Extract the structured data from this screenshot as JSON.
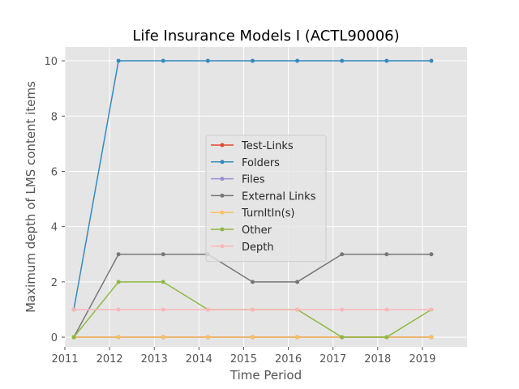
{
  "chart_data": {
    "type": "line",
    "title": "Life Insurance Models I (ACTL90006)",
    "xlabel": "Time Period",
    "ylabel": "Maximum depth of LMS content items",
    "xlim": [
      2011.0,
      2020.0
    ],
    "ylim": [
      -0.35,
      10.5
    ],
    "xticks": [
      2011,
      2012,
      2013,
      2014,
      2015,
      2016,
      2017,
      2018,
      2019
    ],
    "yticks": [
      0,
      2,
      4,
      6,
      8,
      10
    ],
    "grid": true,
    "legend_position": "center",
    "x": [
      2011.2,
      2012.2,
      2013.2,
      2014.2,
      2015.2,
      2016.2,
      2017.2,
      2018.2,
      2019.2
    ],
    "series": [
      {
        "name": "Test-Links",
        "color": "#e24a33",
        "values": [
          0,
          0,
          0,
          0,
          0,
          0,
          0,
          0,
          0
        ]
      },
      {
        "name": "Folders",
        "color": "#348abd",
        "values": [
          1,
          10,
          10,
          10,
          10,
          10,
          10,
          10,
          10
        ]
      },
      {
        "name": "Files",
        "color": "#988ed5",
        "values": [
          0,
          0,
          0,
          0,
          0,
          0,
          0,
          0,
          0
        ]
      },
      {
        "name": "External Links",
        "color": "#777777",
        "values": [
          0,
          3,
          3,
          3,
          2,
          2,
          3,
          3,
          3
        ]
      },
      {
        "name": "TurnItIn(s)",
        "color": "#fbc15e",
        "values": [
          0,
          0,
          0,
          0,
          0,
          0,
          0,
          0,
          0
        ]
      },
      {
        "name": "Other",
        "color": "#8eba42",
        "values": [
          0,
          2,
          2,
          1,
          1,
          1,
          0,
          0,
          1
        ]
      },
      {
        "name": "Depth",
        "color": "#ffb5b8",
        "values": [
          1,
          1,
          1,
          1,
          1,
          1,
          1,
          1,
          1
        ]
      }
    ]
  }
}
